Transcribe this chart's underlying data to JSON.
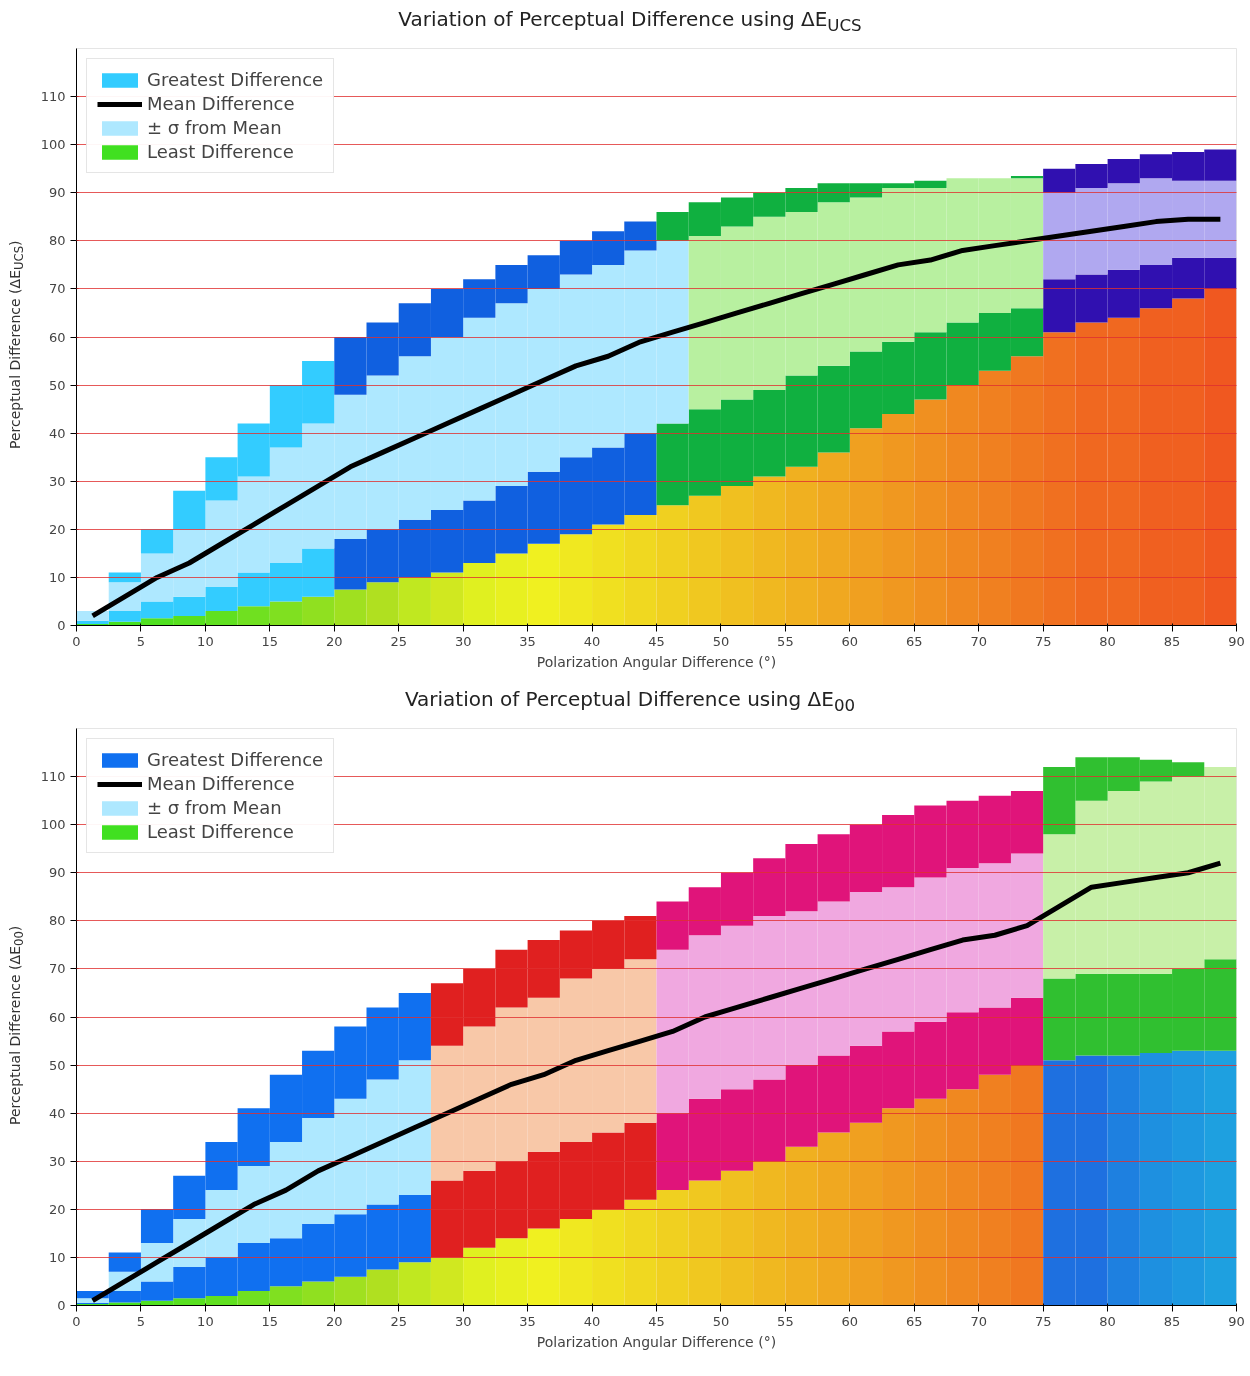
{
  "chart_data": [
    {
      "type": "bar",
      "stacked": true,
      "title": "Variation of Perceptual Difference using ΔE$_{UCS}$",
      "xlabel": "Polarization Angular Difference (°)",
      "ylabel": "Perceptual Difference (ΔE$_{UCS}$)",
      "x": [
        1.25,
        3.75,
        6.25,
        8.75,
        11.25,
        13.75,
        16.25,
        18.75,
        21.25,
        23.75,
        26.25,
        28.75,
        31.25,
        33.75,
        36.25,
        38.75,
        41.25,
        43.75,
        46.25,
        48.75,
        51.25,
        53.75,
        56.25,
        58.75,
        61.25,
        63.75,
        66.25,
        68.75,
        71.25,
        73.75,
        76.25,
        78.75,
        81.25,
        83.75,
        86.25,
        88.75
      ],
      "xlim": [
        0,
        90
      ],
      "xticks": [
        0,
        5,
        10,
        15,
        20,
        25,
        30,
        35,
        40,
        45,
        50,
        55,
        60,
        65,
        70,
        75,
        80,
        85,
        90
      ],
      "ylim": [
        0,
        120
      ],
      "yticks": [
        0,
        10,
        20,
        30,
        40,
        50,
        60,
        70,
        80,
        90,
        100,
        110
      ],
      "grid": "y",
      "legend": "top left",
      "series": [
        {
          "name": "Least Difference",
          "colors": [
            "#40e020",
            "#48e020",
            "#50e020",
            "#58e020",
            "#60e020",
            "#70e020",
            "#80e020",
            "#90e020",
            "#a0e020",
            "#b0e020",
            "#c0e820",
            "#d0e820",
            "#e0f020",
            "#e8f020",
            "#f0f020",
            "#f0e820",
            "#f0e020",
            "#f0d820",
            "#f0d020",
            "#f0c820",
            "#f0c020",
            "#f0b820",
            "#f0b020",
            "#f0a820",
            "#f0a020",
            "#f09820",
            "#f09020",
            "#f08820",
            "#f08020",
            "#f07820",
            "#f07020",
            "#f06820",
            "#f06820",
            "#f06020",
            "#f06020",
            "#f05820"
          ],
          "values": [
            0.3,
            0.8,
            1.5,
            2,
            3,
            4,
            5,
            6,
            7.5,
            9,
            10,
            11,
            13,
            15,
            17,
            19,
            21,
            23,
            25,
            27,
            29,
            31,
            33,
            36,
            41,
            44,
            47,
            50,
            53,
            56,
            61,
            63,
            64,
            66,
            68,
            70
          ]
        },
        {
          "colors": [
            "#33ccff",
            "#33ccff",
            "#33ccff",
            "#33ccff",
            "#33ccff",
            "#33ccff",
            "#33ccff",
            "#33ccff",
            "#1060e0",
            "#1060e0",
            "#1060e0",
            "#1060e0",
            "#1060e0",
            "#1060e0",
            "#1060e0",
            "#1060e0",
            "#1060e0",
            "#1060e0",
            "#10b040",
            "#10b040",
            "#10b040",
            "#10b040",
            "#10b040",
            "#10b040",
            "#10b040",
            "#10b040",
            "#10b040",
            "#10b040",
            "#10b040",
            "#10b040",
            "#3010b0",
            "#3010b0",
            "#3010b0",
            "#3010b0",
            "#3010b0",
            "#3010b0"
          ],
          "values": [
            0.7,
            2.2,
            3.5,
            4,
            5,
            7,
            8,
            10,
            10.5,
            11,
            12,
            13,
            13,
            14,
            15,
            16,
            16,
            17,
            17,
            18,
            18,
            18,
            19,
            18,
            16,
            15,
            14,
            13,
            12,
            10,
            11,
            10,
            10,
            9,
            8.5,
            6.5
          ]
        },
        {
          "name": "± σ from Mean",
          "colors": [
            "#aee8ff",
            "#aee8ff",
            "#aee8ff",
            "#aee8ff",
            "#aee8ff",
            "#aee8ff",
            "#aee8ff",
            "#aee8ff",
            "#aee8ff",
            "#aee8ff",
            "#aee8ff",
            "#aee8ff",
            "#aee8ff",
            "#aee8ff",
            "#aee8ff",
            "#aee8ff",
            "#aee8ff",
            "#aee8ff",
            "#aee8ff",
            "#b8f0a0",
            "#b8f0a0",
            "#b8f0a0",
            "#b8f0a0",
            "#b8f0a0",
            "#b8f0a0",
            "#b8f0a0",
            "#b8f0a0",
            "#b8f0a0",
            "#b8f0a0",
            "#b8f0a0",
            "#b0a8f0",
            "#b0a8f0",
            "#b0a8f0",
            "#b0a8f0",
            "#b0a8f0",
            "#b0a8f0"
          ],
          "values": [
            2,
            6,
            10,
            14,
            18,
            20,
            24,
            26,
            30,
            32,
            34,
            36,
            38,
            38,
            38,
            38,
            38,
            38,
            38,
            36,
            36,
            36,
            34,
            34,
            32,
            32,
            30,
            30,
            28,
            27,
            18,
            18,
            18,
            18,
            16,
            16
          ]
        },
        {
          "name": "Mean Difference",
          "type": "line",
          "color": "#000000",
          "values": [
            2,
            6,
            10,
            13,
            17,
            21,
            25,
            29,
            33,
            36,
            39,
            42,
            45,
            48,
            51,
            54,
            56,
            59,
            61,
            63,
            65,
            67,
            69,
            71,
            73,
            75,
            76,
            78,
            79,
            80,
            81,
            82,
            83,
            84,
            84.5,
            84.5
          ]
        },
        {
          "name": "Greatest Difference",
          "colors": [
            "#33ccff",
            "#33ccff",
            "#33ccff",
            "#33ccff",
            "#33ccff",
            "#33ccff",
            "#33ccff",
            "#33ccff",
            "#1060e0",
            "#1060e0",
            "#1060e0",
            "#1060e0",
            "#1060e0",
            "#1060e0",
            "#1060e0",
            "#1060e0",
            "#1060e0",
            "#1060e0",
            "#10b040",
            "#10b040",
            "#10b040",
            "#10b040",
            "#10b040",
            "#10b040",
            "#10b040",
            "#10b040",
            "#10b040",
            "#10b040",
            "#10b040",
            "#10b040",
            "#3010b0",
            "#3010b0",
            "#3010b0",
            "#3010b0",
            "#3010b0",
            "#3010b0"
          ],
          "values": [
            0,
            2,
            5,
            8,
            9,
            11,
            13,
            13,
            12,
            11,
            11,
            10,
            8,
            8,
            7,
            7,
            7,
            6,
            6,
            7,
            6,
            5,
            5,
            4,
            3,
            1,
            1.5,
            0,
            0,
            0.5,
            5,
            5,
            5,
            5,
            6,
            6.5
          ]
        }
      ]
    },
    {
      "type": "bar",
      "stacked": true,
      "title": "Variation of Perceptual Difference using ΔE$_{00}$",
      "xlabel": "Polarization Angular Difference (°)",
      "ylabel": "Perceptual Difference (ΔE$_{00}$)",
      "x": [
        1.25,
        3.75,
        6.25,
        8.75,
        11.25,
        13.75,
        16.25,
        18.75,
        21.25,
        23.75,
        26.25,
        28.75,
        31.25,
        33.75,
        36.25,
        38.75,
        41.25,
        43.75,
        46.25,
        48.75,
        51.25,
        53.75,
        56.25,
        58.75,
        61.25,
        63.75,
        66.25,
        68.75,
        71.25,
        73.75,
        76.25,
        78.75,
        81.25,
        83.75,
        86.25,
        88.75
      ],
      "xlim": [
        0,
        90
      ],
      "xticks": [
        0,
        5,
        10,
        15,
        20,
        25,
        30,
        35,
        40,
        45,
        50,
        55,
        60,
        65,
        70,
        75,
        80,
        85,
        90
      ],
      "ylim": [
        0,
        120
      ],
      "yticks": [
        0,
        10,
        20,
        30,
        40,
        50,
        60,
        70,
        80,
        90,
        100,
        110
      ],
      "grid": "y",
      "legend": "top left",
      "series": [
        {
          "name": "Least Difference",
          "colors": [
            "#40e020",
            "#48e020",
            "#50e020",
            "#58e020",
            "#60e020",
            "#70e020",
            "#80e020",
            "#90e020",
            "#a0e020",
            "#b0e020",
            "#c0e820",
            "#d0e820",
            "#e0f020",
            "#e8f020",
            "#f0f020",
            "#f0e820",
            "#f0e020",
            "#f0d820",
            "#f0d020",
            "#f0c820",
            "#f0c020",
            "#f0b820",
            "#f0b020",
            "#f0a820",
            "#f0a020",
            "#f09820",
            "#f09020",
            "#f08820",
            "#f08020",
            "#f07820",
            "#1e70e0",
            "#1e70e0",
            "#1e80e0",
            "#1e90e0",
            "#1e98e0",
            "#1ea0e0"
          ],
          "values": [
            0.3,
            0.6,
            1,
            1.5,
            2,
            3,
            4,
            5,
            6,
            7.5,
            9,
            10,
            12,
            14,
            16,
            18,
            20,
            22,
            24,
            26,
            28,
            30,
            33,
            36,
            38,
            41,
            43,
            45,
            48,
            50,
            51,
            52,
            52,
            52.5,
            53,
            53
          ]
        },
        {
          "colors": [
            "#1070f0",
            "#1070f0",
            "#1070f0",
            "#1070f0",
            "#1070f0",
            "#1070f0",
            "#1070f0",
            "#1070f0",
            "#1070f0",
            "#1070f0",
            "#1070f0",
            "#e02020",
            "#e02020",
            "#e02020",
            "#e02020",
            "#e02020",
            "#e02020",
            "#e02020",
            "#e0147a",
            "#e0147a",
            "#e0147a",
            "#e0147a",
            "#e0147a",
            "#e0147a",
            "#e0147a",
            "#e0147a",
            "#e0147a",
            "#e0147a",
            "#e0147a",
            "#e0147a",
            "#30c030",
            "#30c030",
            "#30c030",
            "#30c030",
            "#30c030",
            "#30c030"
          ],
          "values": [
            0.2,
            2.4,
            4,
            6.5,
            8,
            10,
            10,
            12,
            13,
            13.5,
            14,
            16,
            16,
            16,
            16,
            16,
            16,
            16,
            16,
            17,
            17,
            17,
            17,
            16,
            16,
            16,
            16,
            16,
            14,
            14,
            17,
            17,
            17,
            16.5,
            17,
            19
          ]
        },
        {
          "name": "± σ from Mean",
          "colors": [
            "#aee8ff",
            "#aee8ff",
            "#aee8ff",
            "#aee8ff",
            "#aee8ff",
            "#aee8ff",
            "#aee8ff",
            "#aee8ff",
            "#aee8ff",
            "#aee8ff",
            "#aee8ff",
            "#f8c8a8",
            "#f8c8a8",
            "#f8c8a8",
            "#f8c8a8",
            "#f8c8a8",
            "#f8c8a8",
            "#f8c8a8",
            "#f0a8e0",
            "#f0a8e0",
            "#f0a8e0",
            "#f0a8e0",
            "#f0a8e0",
            "#f0a8e0",
            "#f0a8e0",
            "#f0a8e0",
            "#f0a8e0",
            "#f0a8e0",
            "#f0a8e0",
            "#f0a8e0",
            "#c8f0a8",
            "#c8f0a8",
            "#c8f0a8",
            "#c8f0a8",
            "#c8f0a8",
            "#c8f0a8"
          ],
          "values": [
            1,
            4,
            8,
            10,
            14,
            16,
            20,
            22,
            24,
            26,
            28,
            28,
            30,
            32,
            32,
            34,
            34,
            34,
            34,
            34,
            34,
            34,
            32,
            32,
            32,
            30,
            30,
            30,
            30,
            30,
            30,
            36,
            38,
            40,
            40,
            40
          ]
        },
        {
          "name": "Mean Difference",
          "type": "line",
          "color": "#000000",
          "values": [
            1,
            5,
            9,
            13,
            17,
            21,
            24,
            28,
            31,
            34,
            37,
            40,
            43,
            46,
            48,
            51,
            53,
            55,
            57,
            60,
            62,
            64,
            66,
            68,
            70,
            72,
            74,
            76,
            77,
            79,
            83,
            87,
            88,
            89,
            90,
            92
          ]
        },
        {
          "name": "Greatest Difference",
          "colors": [
            "#1070f0",
            "#1070f0",
            "#1070f0",
            "#1070f0",
            "#1070f0",
            "#1070f0",
            "#1070f0",
            "#1070f0",
            "#1070f0",
            "#1070f0",
            "#1070f0",
            "#e02020",
            "#e02020",
            "#e02020",
            "#e02020",
            "#e02020",
            "#e02020",
            "#e02020",
            "#e0147a",
            "#e0147a",
            "#e0147a",
            "#e0147a",
            "#e0147a",
            "#e0147a",
            "#e0147a",
            "#e0147a",
            "#e0147a",
            "#e0147a",
            "#e0147a",
            "#e0147a",
            "#30c030",
            "#30c030",
            "#30c030",
            "#30c030",
            "#30c030",
            "#30c030"
          ],
          "values": [
            1.5,
            4,
            7,
            9,
            10,
            12,
            14,
            14,
            15,
            15,
            14,
            13,
            12,
            12,
            12,
            10,
            10,
            9,
            10,
            10,
            11,
            12,
            14,
            14,
            14,
            15,
            15,
            14,
            14,
            13,
            14,
            9,
            7,
            4.5,
            3,
            0
          ]
        }
      ]
    }
  ]
}
